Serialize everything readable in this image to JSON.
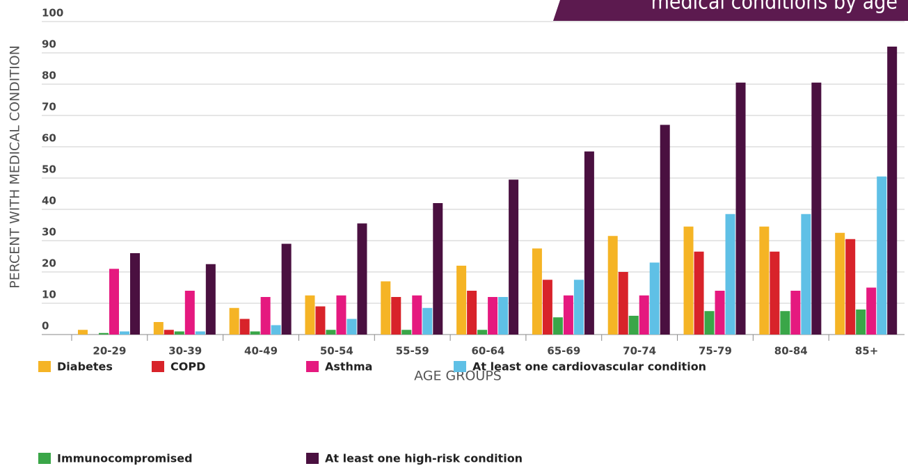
{
  "chart_data": {
    "type": "bar",
    "title": "medical conditions by age",
    "y_label": "PERCENT WITH MEDICAL CONDITION",
    "x_label": "AGE GROUPS",
    "categories": [
      "20-29",
      "30-39",
      "40-49",
      "50-54",
      "55-59",
      "60-64",
      "65-69",
      "70-74",
      "75-79",
      "80-84",
      "85+"
    ],
    "series": [
      {
        "name": "Diabetes",
        "color": "#f5b425",
        "values": [
          1.5,
          4,
          8.5,
          12.5,
          17,
          22,
          27.5,
          31.5,
          34.5,
          34.5,
          32.5
        ]
      },
      {
        "name": "COPD",
        "color": "#d8232a",
        "values": [
          0,
          1.5,
          5,
          9,
          12,
          14,
          17.5,
          20,
          26.5,
          26.5,
          30.5
        ]
      },
      {
        "name": "Immunocompromised",
        "color": "#3aa648",
        "values": [
          0.5,
          1,
          1,
          1.5,
          1.5,
          1.5,
          5.5,
          6,
          7.5,
          7.5,
          8
        ]
      },
      {
        "name": "Asthma",
        "color": "#e5197f",
        "values": [
          21,
          14,
          12,
          12.5,
          12.5,
          12,
          12.5,
          12.5,
          14,
          14,
          15
        ]
      },
      {
        "name": "At least one cardiovascular condition",
        "color": "#5fc0e6",
        "values": [
          1,
          1,
          3,
          5,
          8.5,
          12,
          17.5,
          23,
          38.5,
          38.5,
          50.5
        ]
      },
      {
        "name": "At least one high-risk condition",
        "color": "#4a1040",
        "values": [
          26,
          22.5,
          29,
          35.5,
          42,
          49.5,
          58.5,
          67,
          80.5,
          80.5,
          92
        ]
      }
    ],
    "ylim": [
      0,
      100
    ],
    "yticks": [
      0,
      10,
      20,
      30,
      40,
      50,
      60,
      70,
      80,
      90,
      100
    ],
    "grid": true
  }
}
